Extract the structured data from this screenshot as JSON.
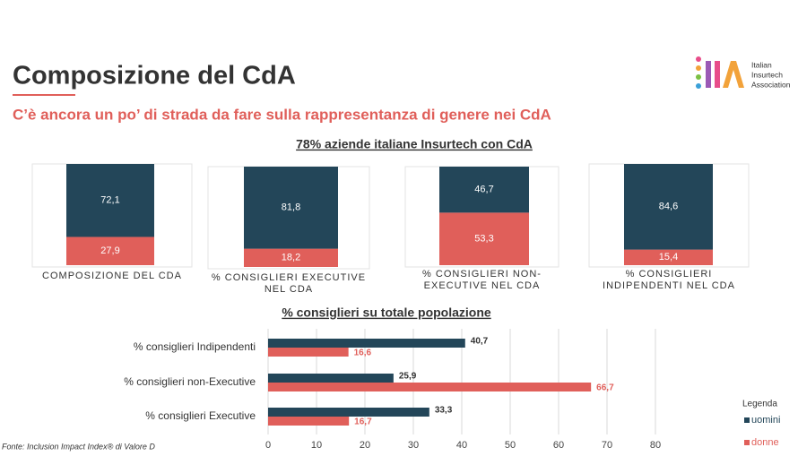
{
  "header": {
    "title": "Composizione del CdA",
    "subtitle": "C’è ancora un po’ di strada da fare sulla rappresentanza di genere nei CdA"
  },
  "logo": {
    "lines": [
      "Italian",
      "Insurtech",
      "Association"
    ]
  },
  "top_heading": "78% aziende italiane Insurtech con CdA",
  "footnote": "Fonte: Inclusion Impact Index® di Valore D",
  "chart_data": [
    {
      "type": "bar",
      "stacked": true,
      "categories": [
        "COMPOSIZIONE DEL CDA"
      ],
      "ylim": [
        0,
        100
      ],
      "series": [
        {
          "color": "#234659",
          "values": [
            72.1
          ],
          "value_labels": [
            "72,1"
          ]
        },
        {
          "color": "#e05f5a",
          "values": [
            27.9
          ],
          "value_labels": [
            "27,9"
          ]
        }
      ]
    },
    {
      "type": "bar",
      "stacked": true,
      "categories": [
        "% CONSIGLIERI EXECUTIVE NEL CDA"
      ],
      "ylim": [
        0,
        100
      ],
      "series": [
        {
          "color": "#234659",
          "values": [
            81.8
          ],
          "value_labels": [
            "81,8"
          ]
        },
        {
          "color": "#e05f5a",
          "values": [
            18.2
          ],
          "value_labels": [
            "18,2"
          ]
        }
      ]
    },
    {
      "type": "bar",
      "stacked": true,
      "categories": [
        "% CONSIGLIERI NON-EXECUTIVE NEL CDA"
      ],
      "ylim": [
        0,
        100
      ],
      "series": [
        {
          "color": "#234659",
          "values": [
            46.7
          ],
          "value_labels": [
            "46,7"
          ]
        },
        {
          "color": "#e05f5a",
          "values": [
            53.3
          ],
          "value_labels": [
            "53,3"
          ]
        }
      ]
    },
    {
      "type": "bar",
      "stacked": true,
      "categories": [
        "% CONSIGLIERI INDIPENDENTI NEL CDA"
      ],
      "ylim": [
        0,
        100
      ],
      "series": [
        {
          "color": "#234659",
          "values": [
            84.6
          ],
          "value_labels": [
            "84,6"
          ]
        },
        {
          "color": "#e05f5a",
          "values": [
            15.4
          ],
          "value_labels": [
            "15,4"
          ]
        }
      ]
    },
    {
      "type": "hbar",
      "title": "% consiglieri su totale popolazione",
      "categories": [
        "% consiglieri Indipendenti",
        "% consiglieri non-Executive",
        "% consiglieri Executive"
      ],
      "series": [
        {
          "name": "uomini",
          "color": "#234659",
          "values": [
            40.7,
            25.9,
            33.3
          ],
          "value_labels": [
            "40,7",
            "25,9",
            "33,3"
          ]
        },
        {
          "name": "donne",
          "color": "#e05f5a",
          "values": [
            16.6,
            66.7,
            16.7
          ],
          "value_labels": [
            "16,6",
            "66,7",
            "16,7"
          ]
        }
      ],
      "xlim": [
        0,
        80
      ],
      "xticks": [
        0,
        10,
        20,
        30,
        40,
        50,
        60,
        70,
        80
      ],
      "grid": true,
      "legend": {
        "title": "Legenda",
        "position": "bottom-right"
      }
    }
  ]
}
